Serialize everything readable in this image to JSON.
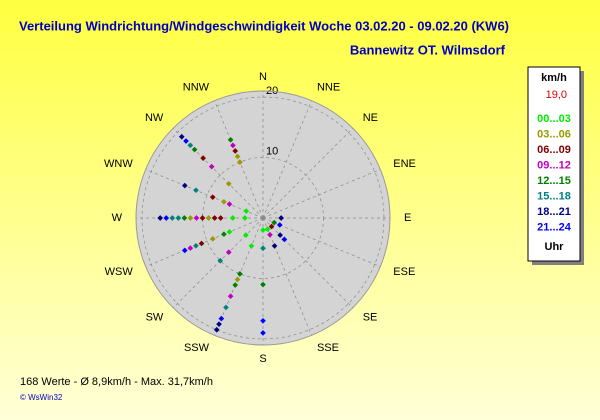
{
  "chart_data": {
    "type": "polar_scatter",
    "title": "Verteilung Windrichtung/Windgeschwindigkeit  Woche 03.02.20 - 09.02.20 (KW6)",
    "subtitle": "Bannewitz OT. Wilmsdorf",
    "directions": [
      "N",
      "NNE",
      "NE",
      "ENE",
      "E",
      "ESE",
      "SE",
      "SSE",
      "S",
      "SSW",
      "SW",
      "WSW",
      "W",
      "WNW",
      "NW",
      "NNW"
    ],
    "rlim": [
      0,
      21
    ],
    "rticks": [
      10,
      20
    ],
    "grid": true,
    "legend_title": "km/h",
    "legend_value": "19,0",
    "legend_footer": "Uhr",
    "series": [
      {
        "name": "00...03",
        "color": "#00ee00",
        "theta": [
          270,
          270,
          247.5,
          225,
          202.5,
          180,
          292.5,
          157.5
        ],
        "r": [
          3,
          5,
          6,
          4,
          5,
          2,
          3,
          2
        ]
      },
      {
        "name": "03...06",
        "color": "#999900",
        "theta": [
          337.5,
          337.5,
          315,
          292.5,
          270,
          247.5,
          202.5,
          270
        ],
        "r": [
          10,
          11,
          8,
          7,
          9,
          9,
          11,
          12
        ]
      },
      {
        "name": "06...09",
        "color": "#800000",
        "theta": [
          337.5,
          315,
          270,
          270,
          247.5,
          292.5,
          135,
          270
        ],
        "r": [
          12,
          14,
          8,
          10,
          11,
          9,
          2,
          7
        ]
      },
      {
        "name": "09...12",
        "color": "#c000c0",
        "theta": [
          315,
          337.5,
          270,
          247.5,
          225,
          202.5,
          292.5,
          157.5
        ],
        "r": [
          12,
          13,
          11,
          13,
          8,
          14,
          6,
          3
        ]
      },
      {
        "name": "12...15",
        "color": "#008000",
        "theta": [
          337.5,
          315,
          270,
          202.5,
          202.5,
          180,
          247.5,
          112.5
        ],
        "r": [
          14,
          16,
          13,
          10,
          12,
          11,
          7,
          2
        ]
      },
      {
        "name": "15...18",
        "color": "#008080",
        "theta": [
          315,
          270,
          270,
          247.5,
          225,
          202.5,
          292.5,
          180
        ],
        "r": [
          17,
          15,
          14,
          12,
          10,
          16,
          12,
          5
        ]
      },
      {
        "name": "18...21",
        "color": "#000080",
        "theta": [
          315,
          270,
          202.5,
          202.5,
          135,
          90,
          157.5,
          292.5
        ],
        "r": [
          19,
          17,
          20,
          19,
          4,
          3,
          5,
          14
        ]
      },
      {
        "name": "21...24",
        "color": "#0000ff",
        "theta": [
          315,
          270,
          247.5,
          202.5,
          180,
          180,
          112.5,
          135
        ],
        "r": [
          18,
          16,
          14,
          18,
          19,
          17,
          3,
          5
        ]
      }
    ],
    "footer": "168 Werte   -   Ø 8,9km/h   -  Max. 31,7km/h",
    "copyright": "© WsWin32"
  }
}
